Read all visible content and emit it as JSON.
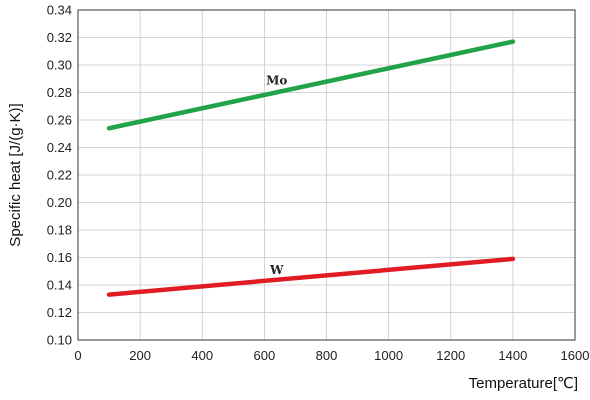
{
  "chart_data": {
    "type": "line",
    "xlabel": "Temperature[℃]",
    "ylabel": "Specific heat [J/(g·K)]",
    "xlim": [
      0,
      1600
    ],
    "ylim": [
      0.1,
      0.34
    ],
    "x_ticks": [
      "0",
      "200",
      "400",
      "600",
      "800",
      "1000",
      "1200",
      "1400",
      "1600"
    ],
    "y_ticks": [
      "0.10",
      "0.12",
      "0.14",
      "0.16",
      "0.18",
      "0.20",
      "0.22",
      "0.24",
      "0.26",
      "0.28",
      "0.30",
      "0.32",
      "0.34"
    ],
    "x_tick_values": [
      0,
      200,
      400,
      600,
      800,
      1000,
      1200,
      1400,
      1600
    ],
    "y_tick_values": [
      0.1,
      0.12,
      0.14,
      0.16,
      0.18,
      0.2,
      0.22,
      0.24,
      0.26,
      0.28,
      0.3,
      0.32,
      0.34
    ],
    "grid": true,
    "series": [
      {
        "name": "Mo",
        "color": "#22a34a",
        "x": [
          100,
          1400
        ],
        "y": [
          0.254,
          0.317
        ],
        "label_at": [
          640,
          0.286
        ]
      },
      {
        "name": "W",
        "color": "#e01b24",
        "x": [
          100,
          1400
        ],
        "y": [
          0.133,
          0.159
        ],
        "label_at": [
          640,
          0.148
        ]
      }
    ]
  }
}
